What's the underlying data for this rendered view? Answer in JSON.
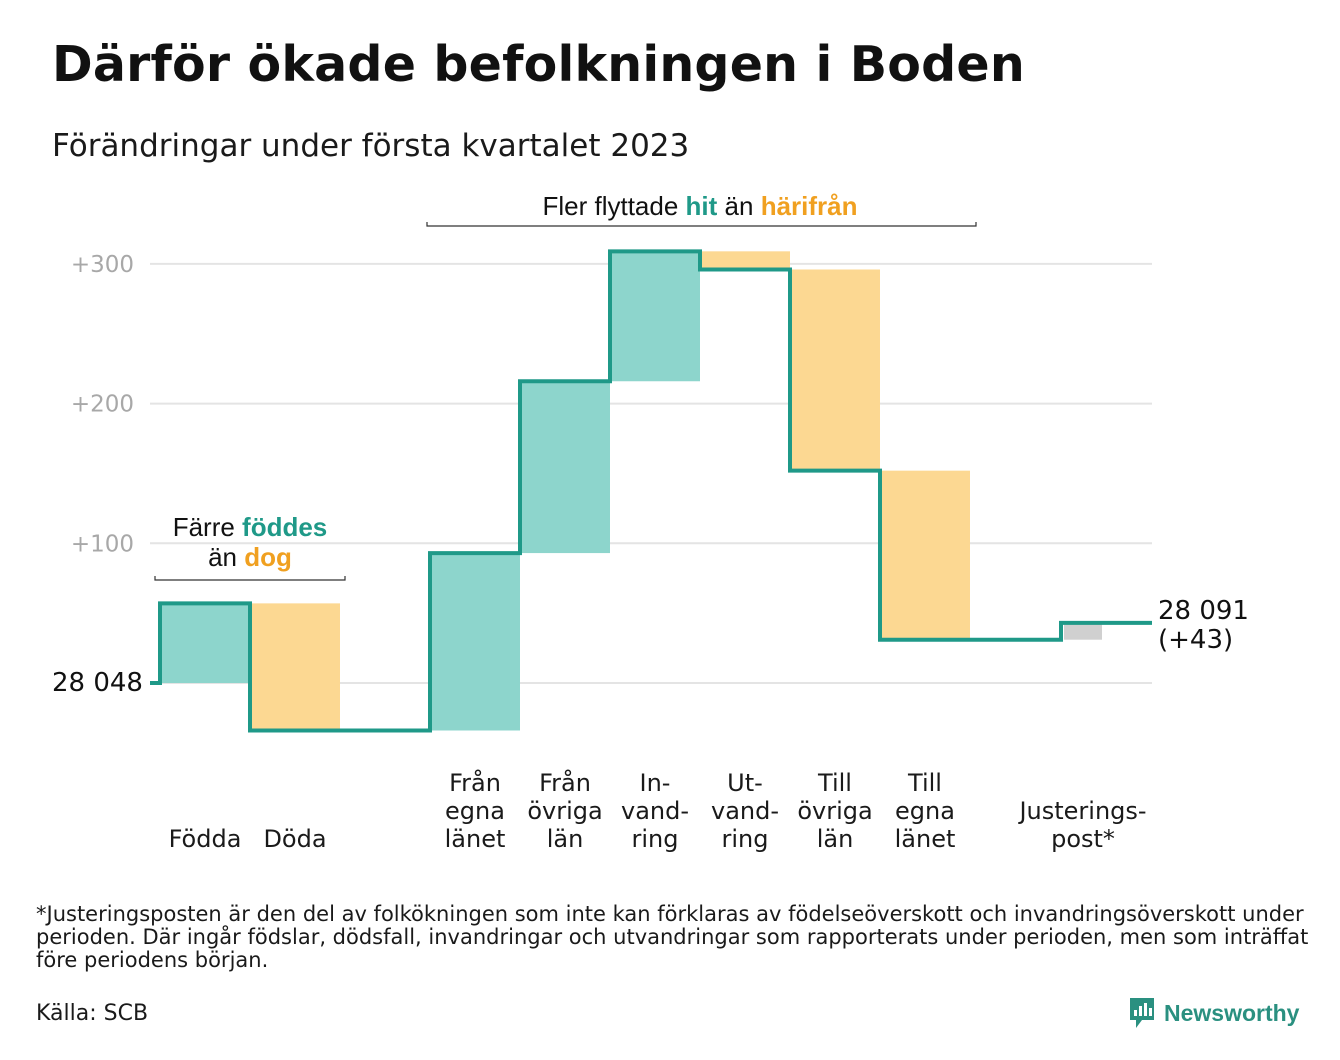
{
  "title": "Därför ökade befolkningen i Boden",
  "subtitle": "Förändringar under första kvartalet 2023",
  "colors": {
    "inflow": "#8dd5cc",
    "outflow": "#fcd892",
    "adjustment": "#d0d0d0",
    "line": "#1f9988",
    "accent_teal": "#1f9988",
    "accent_orange": "#f0a020",
    "grid": "#e4e4e4",
    "tick_text": "#a8a8a8"
  },
  "chart_data": {
    "type": "waterfall",
    "start_value": 28048,
    "start_label": "28 048",
    "end_label_value": "28 091",
    "end_label_change": "(+43)",
    "y_ticks": [
      "+100",
      "+200",
      "+300"
    ],
    "ylim": [
      -45,
      320
    ],
    "bars": [
      {
        "label": [
          "Födda"
        ],
        "delta": 57,
        "kind": "inflow"
      },
      {
        "label": [
          "Döda"
        ],
        "delta": -91,
        "kind": "outflow"
      },
      {
        "label": [
          "Från",
          "egna",
          "länet"
        ],
        "delta": 127,
        "kind": "inflow"
      },
      {
        "label": [
          "Från",
          "övriga",
          "län"
        ],
        "delta": 123,
        "kind": "inflow"
      },
      {
        "label": [
          "In-",
          "vand-",
          "ring"
        ],
        "delta": 93,
        "kind": "inflow"
      },
      {
        "label": [
          "Ut-",
          "vand-",
          "ring"
        ],
        "delta": -13,
        "kind": "outflow"
      },
      {
        "label": [
          "Till",
          "övriga",
          "län"
        ],
        "delta": -144,
        "kind": "outflow"
      },
      {
        "label": [
          "Till",
          "egna",
          "länet"
        ],
        "delta": -121,
        "kind": "outflow"
      },
      {
        "label": [
          "Justerings-",
          "post*"
        ],
        "delta": 12,
        "kind": "adjustment"
      }
    ],
    "annotations": [
      {
        "prefix": "Färre ",
        "highlight1": "föddes",
        "middle": "än ",
        "highlight2": "dog"
      },
      {
        "prefix": "Fler flyttade ",
        "highlight1": "hit",
        "middle": " än ",
        "highlight2": "härifrån"
      }
    ]
  },
  "footnote": "*Justeringsposten är den del av folkökningen som inte kan förklaras av födelseöverskott och invandringsöverskott under perioden. Där ingår födslar, dödsfall, invandringar och utvandringar som rapporterats under perioden, men som inträffat före periodens början.",
  "source": "Källa: SCB",
  "brand": {
    "name": "Newsworthy",
    "icon": "newsworthy-logo-icon"
  }
}
